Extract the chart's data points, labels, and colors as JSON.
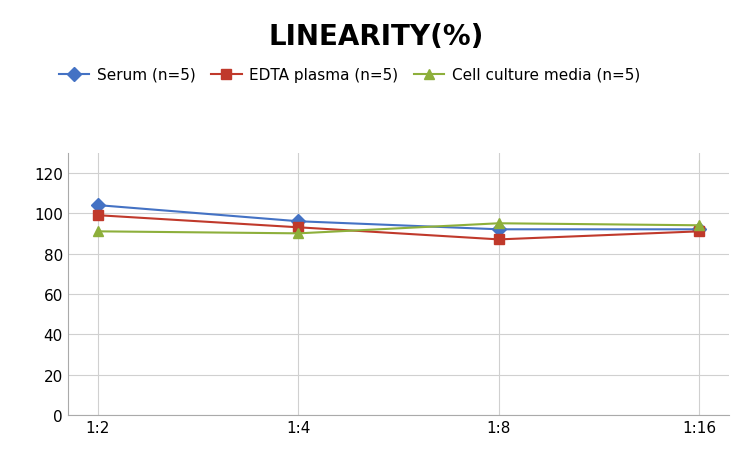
{
  "title": "LINEARITY(%)",
  "x_labels": [
    "1:2",
    "1:4",
    "1:8",
    "1:16"
  ],
  "series": [
    {
      "label": "Serum (n=5)",
      "color": "#4472C4",
      "marker": "D",
      "values": [
        104,
        96,
        92,
        92
      ]
    },
    {
      "label": "EDTA plasma (n=5)",
      "color": "#C0392B",
      "marker": "s",
      "values": [
        99,
        93,
        87,
        91
      ]
    },
    {
      "label": "Cell culture media (n=5)",
      "color": "#8DAF3B",
      "marker": "^",
      "values": [
        91,
        90,
        95,
        94
      ]
    }
  ],
  "ylim": [
    0,
    130
  ],
  "yticks": [
    0,
    20,
    40,
    60,
    80,
    100,
    120
  ],
  "background_color": "#ffffff",
  "title_fontsize": 20,
  "legend_fontsize": 11,
  "tick_fontsize": 11
}
